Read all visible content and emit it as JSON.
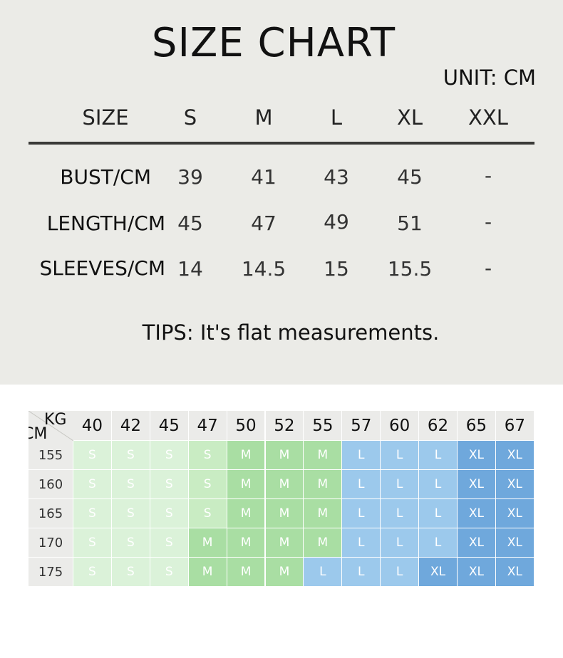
{
  "title": "SIZE CHART",
  "unit": "UNIT: CM",
  "size_table": {
    "header_label": "SIZE",
    "sizes": [
      "S",
      "M",
      "L",
      "XL",
      "XXL"
    ],
    "rows": [
      {
        "label": "BUST/CM",
        "values": [
          "39",
          "41",
          "43",
          "45",
          "-"
        ]
      },
      {
        "label": "LENGTH/CM",
        "values": [
          "45",
          "47",
          "49",
          "51",
          "-"
        ]
      },
      {
        "label": "SLEEVES/CM",
        "values": [
          "14",
          "14.5",
          "15",
          "15.5",
          "-"
        ]
      }
    ]
  },
  "tips": "TIPS: It's flat measurements.",
  "fit_grid": {
    "corner_top": "KG",
    "corner_bottom": "CM",
    "weights": [
      "40",
      "42",
      "45",
      "47",
      "50",
      "52",
      "55",
      "57",
      "60",
      "62",
      "65",
      "67"
    ],
    "heights": [
      "155",
      "160",
      "165",
      "170",
      "175"
    ],
    "cells": [
      [
        "S",
        "S",
        "S",
        "S",
        "M",
        "M",
        "M",
        "L",
        "L",
        "L",
        "XL",
        "XL"
      ],
      [
        "S",
        "S",
        "S",
        "S",
        "M",
        "M",
        "M",
        "L",
        "L",
        "L",
        "XL",
        "XL"
      ],
      [
        "S",
        "S",
        "S",
        "S",
        "M",
        "M",
        "M",
        "L",
        "L",
        "L",
        "XL",
        "XL"
      ],
      [
        "S",
        "S",
        "S",
        "M",
        "M",
        "M",
        "M",
        "L",
        "L",
        "L",
        "XL",
        "XL"
      ],
      [
        "S",
        "S",
        "S",
        "M",
        "M",
        "M",
        "L",
        "L",
        "L",
        "XL",
        "XL",
        "XL"
      ]
    ],
    "colors": {
      "S": "#dbf2d9",
      "S_alt": "#c9ecc3",
      "M": "#a9dea3",
      "L": "#9cc9ec",
      "XL": "#6fa8dc"
    }
  }
}
